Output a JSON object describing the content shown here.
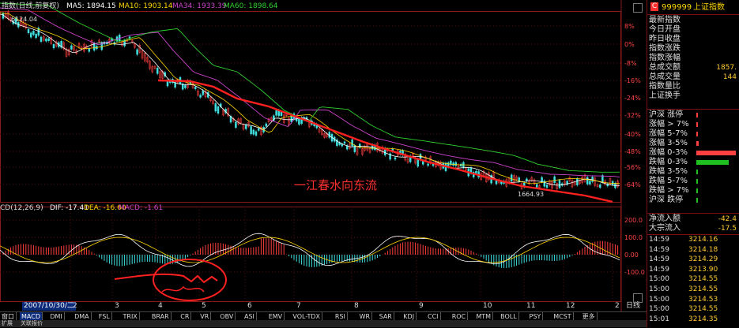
{
  "header": {
    "title": "指数(日线,前复权)",
    "ma5": "MA5: 1894.15",
    "ma10": "MA10: 1903.14",
    "ma34": "MA34: 1933.39",
    "ma60": "MA60: 1898.64",
    "high_label": "6124.04"
  },
  "watermark": "一江春水向东流",
  "low_label": "1664.93",
  "pct_axis": [
    "8%",
    "0%",
    "-8%",
    "-16%",
    "-24%",
    "-32%",
    "-40%",
    "-48%",
    "-56%",
    "-64%"
  ],
  "macd_header": {
    "name": "CD(12,26,9)",
    "dif": "DIF: -17.41",
    "dea": "DEA: -16.60",
    "macd": "MACD: -1.61"
  },
  "macd_axis": [
    "200.0",
    "100.0",
    "0.00",
    "-100.0"
  ],
  "date_axis": {
    "highlight": "2007/10/30/二",
    "marks": [
      "2",
      "3",
      "4",
      "5",
      "6",
      "7",
      "8",
      "9",
      "10",
      "11",
      "12",
      "2"
    ],
    "right_label": "日线"
  },
  "indicator_tabs": [
    "窗口",
    "MACD",
    "DMI",
    "DMA",
    "FSL",
    "TRIX",
    "BRAR",
    "CR",
    "VR",
    "OBV",
    "ASI",
    "EMV",
    "VOL-TDX",
    "RSI",
    "WR",
    "SAR",
    "KDJ",
    "CCI",
    "ROC",
    "MTM",
    "BOLL",
    "PSY",
    "MCST",
    "更多"
  ],
  "bottom_bar": [
    "扩展",
    "关联报价"
  ],
  "colors": {
    "ma_red": "#ff2020",
    "ma5_white": "#ffffff",
    "ma10_yellow": "#ffd700",
    "ma34_magenta": "#cc44cc",
    "ma60_green": "#30d030",
    "axis_red": "#aa2222",
    "up_red": "#ff4040",
    "down_cyan": "#40e0e0"
  },
  "right_panel": {
    "code": "999999",
    "name": "上证指数",
    "c_badge": "C",
    "fields": [
      {
        "label": "最新指数",
        "value": ""
      },
      {
        "label": "今日开盘",
        "value": ""
      },
      {
        "label": "昨日收盘",
        "value": ""
      },
      {
        "label": "指数涨跌",
        "value": ""
      },
      {
        "label": "指数涨幅",
        "value": ""
      },
      {
        "label": "总成交额",
        "value": "1857."
      },
      {
        "label": "总成交量",
        "value": "144"
      },
      {
        "label": "指数量比",
        "value": ""
      },
      {
        "label": "上证换手",
        "value": ""
      }
    ],
    "breadth": [
      {
        "label": "沪深 涨停",
        "color": "#ff4040",
        "bar": 0.01
      },
      {
        "label": "涨幅 > 7%",
        "color": "#ff4040",
        "bar": 0.02
      },
      {
        "label": "涨幅 5-7%",
        "color": "#ff4040",
        "bar": 0.02
      },
      {
        "label": "涨幅 3-5%",
        "color": "#ff4040",
        "bar": 0.06
      },
      {
        "label": "涨幅 0-3%",
        "color": "#ff4040",
        "bar": 0.9
      },
      {
        "label": "跌幅 0-3%",
        "color": "#20c020",
        "bar": 0.75
      },
      {
        "label": "跌幅 3-5%",
        "color": "#20c020",
        "bar": 0.01
      },
      {
        "label": "跌幅 5-7%",
        "color": "#20c020",
        "bar": 0.01
      },
      {
        "label": "跌幅 > 7%",
        "color": "#20c020",
        "bar": 0.01
      },
      {
        "label": "沪深 跌停",
        "color": "#20c020",
        "bar": 0.01
      }
    ],
    "flows": [
      {
        "label": "净流入额",
        "value": "-42.4"
      },
      {
        "label": "大宗流入",
        "value": "-17.5"
      }
    ],
    "ticks": [
      {
        "time": "14:59",
        "price": "3214.16"
      },
      {
        "time": "14:59",
        "price": "3214.18"
      },
      {
        "time": "14:59",
        "price": "3214.29"
      },
      {
        "time": "14:59",
        "price": "3213.90"
      },
      {
        "time": "15:00",
        "price": "3214.55"
      },
      {
        "time": "15:00",
        "price": "3214.55"
      },
      {
        "time": "15:00",
        "price": "3214.53"
      },
      {
        "time": "15:00",
        "price": "3214.55"
      },
      {
        "time": "15:01",
        "price": "3214.35"
      }
    ]
  }
}
